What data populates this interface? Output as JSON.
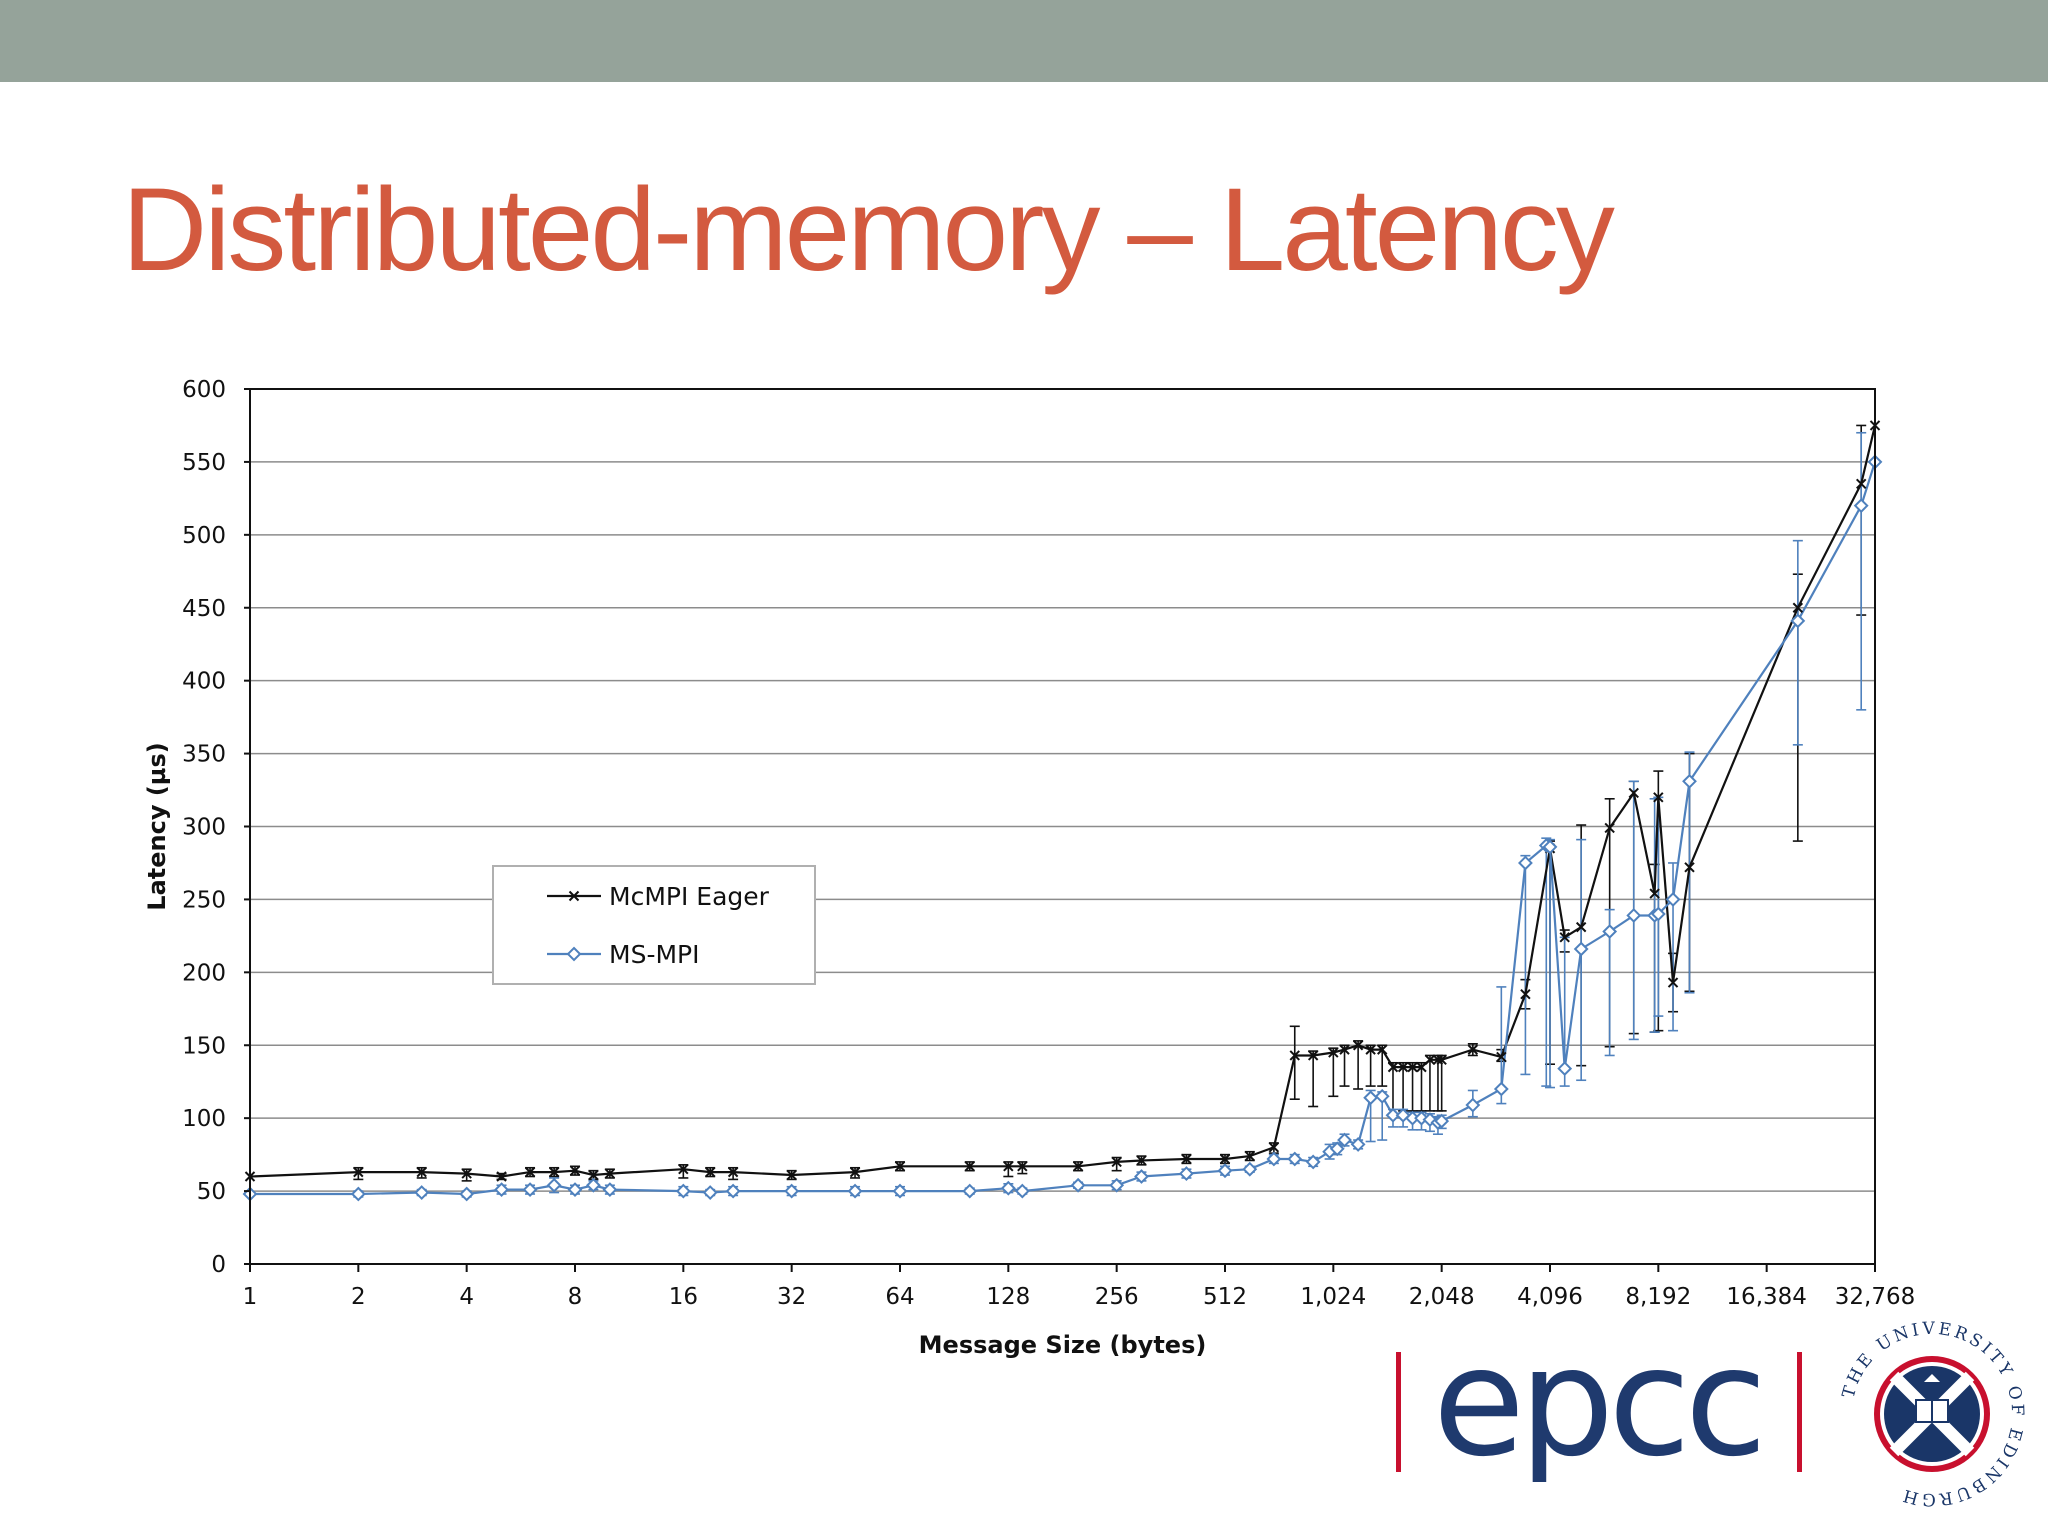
{
  "slide": {
    "title": "Distributed-memory – Latency"
  },
  "logos": {
    "epcc": "epcc",
    "university": "THE UNIVERSITY OF EDINBURGH"
  },
  "colors": {
    "header_band": "#95a39a",
    "title": "#d35a3f",
    "mcmpi_line": "#111111",
    "msmpi_line": "#4f81bd",
    "epcc_text": "#1f3a6e",
    "epcc_bars": "#c8102e",
    "seal_red": "#c8102e",
    "seal_navy": "#1a3668"
  },
  "chart_data": {
    "type": "line",
    "xlabel": "Message Size (bytes)",
    "ylabel": "Latency (µs)",
    "x_scale": "log2",
    "x_tick_values": [
      1,
      2,
      4,
      8,
      16,
      32,
      64,
      128,
      256,
      512,
      1024,
      2048,
      4096,
      8192,
      16384,
      32768
    ],
    "x_tick_labels": [
      "1",
      "2",
      "4",
      "8",
      "16",
      "32",
      "64",
      "128",
      "256",
      "512",
      "1,024",
      "2,048",
      "4,096",
      "8,192",
      "16,384",
      "32,768"
    ],
    "ylim": [
      0,
      600
    ],
    "y_ticks": [
      0,
      50,
      100,
      150,
      200,
      250,
      300,
      350,
      400,
      450,
      500,
      550,
      600
    ],
    "grid": "horizontal",
    "legend_position": "left-middle",
    "series": [
      {
        "name": "McMPI Eager",
        "marker": "x",
        "x": [
          1,
          2,
          3,
          4,
          5,
          6,
          7,
          8,
          9,
          10,
          16,
          19,
          22,
          32,
          48,
          64,
          100,
          128,
          140,
          200,
          256,
          300,
          400,
          512,
          600,
          700,
          800,
          900,
          1024,
          1100,
          1200,
          1300,
          1400,
          1500,
          1600,
          1700,
          1800,
          1900,
          2000,
          2048,
          2500,
          3000,
          3500,
          4096,
          4500,
          5000,
          6000,
          7000,
          8000,
          8192,
          9000,
          10000,
          20000,
          30000,
          32768
        ],
        "y": [
          60,
          63,
          63,
          62,
          60,
          63,
          63,
          64,
          61,
          62,
          65,
          63,
          63,
          61,
          63,
          67,
          67,
          67,
          67,
          67,
          70,
          71,
          72,
          72,
          74,
          80,
          143,
          143,
          145,
          147,
          150,
          147,
          147,
          135,
          135,
          135,
          135,
          140,
          140,
          140,
          147,
          142,
          185,
          285,
          224,
          231,
          299,
          323,
          254,
          320,
          193,
          272,
          450,
          535,
          575
        ],
        "err_low": [
          0,
          5,
          4,
          5,
          2,
          3,
          3,
          3,
          3,
          3,
          6,
          3,
          5,
          3,
          4,
          3,
          3,
          7,
          5,
          3,
          6,
          3,
          3,
          3,
          3,
          4,
          30,
          35,
          30,
          25,
          30,
          25,
          25,
          32,
          30,
          30,
          30,
          35,
          35,
          35,
          4,
          3,
          10,
          148,
          10,
          95,
          150,
          165,
          95,
          160,
          20,
          85,
          160,
          90,
          0
        ],
        "err_high": [
          0,
          3,
          3,
          3,
          2,
          3,
          3,
          3,
          3,
          3,
          3,
          3,
          3,
          3,
          3,
          3,
          3,
          3,
          3,
          3,
          3,
          3,
          3,
          3,
          3,
          3,
          20,
          3,
          3,
          3,
          3,
          3,
          3,
          3,
          3,
          3,
          3,
          3,
          3,
          3,
          4,
          5,
          10,
          5,
          5,
          70,
          20,
          8,
          20,
          18,
          20,
          78,
          23,
          40,
          0
        ]
      },
      {
        "name": "MS-MPI",
        "marker": "diamond",
        "x": [
          1,
          2,
          3,
          4,
          5,
          6,
          7,
          8,
          9,
          10,
          16,
          19,
          22,
          32,
          48,
          64,
          100,
          128,
          140,
          200,
          256,
          300,
          400,
          512,
          600,
          700,
          800,
          900,
          1000,
          1050,
          1100,
          1200,
          1300,
          1400,
          1500,
          1600,
          1700,
          1800,
          1900,
          2000,
          2048,
          2500,
          3000,
          3500,
          4000,
          4096,
          4500,
          5000,
          6000,
          7000,
          8000,
          8192,
          9000,
          10000,
          20000,
          30000,
          32768
        ],
        "y": [
          48,
          48,
          49,
          48,
          51,
          51,
          54,
          51,
          54,
          51,
          50,
          49,
          50,
          50,
          50,
          50,
          50,
          52,
          50,
          54,
          54,
          60,
          62,
          64,
          65,
          72,
          72,
          70,
          77,
          79,
          85,
          82,
          114,
          115,
          102,
          102,
          100,
          100,
          99,
          97,
          98,
          109,
          120,
          275,
          287,
          286,
          134,
          216,
          228,
          239,
          239,
          240,
          250,
          331,
          441,
          520,
          550
        ],
        "err_low": [
          0,
          2,
          2,
          2,
          3,
          3,
          5,
          3,
          3,
          3,
          3,
          2,
          3,
          3,
          3,
          3,
          2,
          3,
          2,
          2,
          3,
          3,
          3,
          3,
          2,
          3,
          3,
          3,
          5,
          4,
          4,
          3,
          30,
          30,
          8,
          8,
          8,
          8,
          8,
          8,
          5,
          8,
          10,
          145,
          165,
          165,
          12,
          90,
          85,
          85,
          80,
          70,
          90,
          145,
          85,
          140,
          0
        ],
        "err_high": [
          0,
          2,
          2,
          2,
          3,
          3,
          5,
          3,
          3,
          3,
          3,
          2,
          3,
          3,
          3,
          3,
          2,
          3,
          2,
          2,
          3,
          3,
          3,
          3,
          2,
          3,
          3,
          3,
          5,
          4,
          4,
          3,
          5,
          3,
          4,
          4,
          4,
          4,
          4,
          4,
          4,
          10,
          70,
          5,
          5,
          5,
          90,
          75,
          15,
          92,
          80,
          80,
          25,
          20,
          55,
          50,
          0
        ]
      }
    ]
  }
}
